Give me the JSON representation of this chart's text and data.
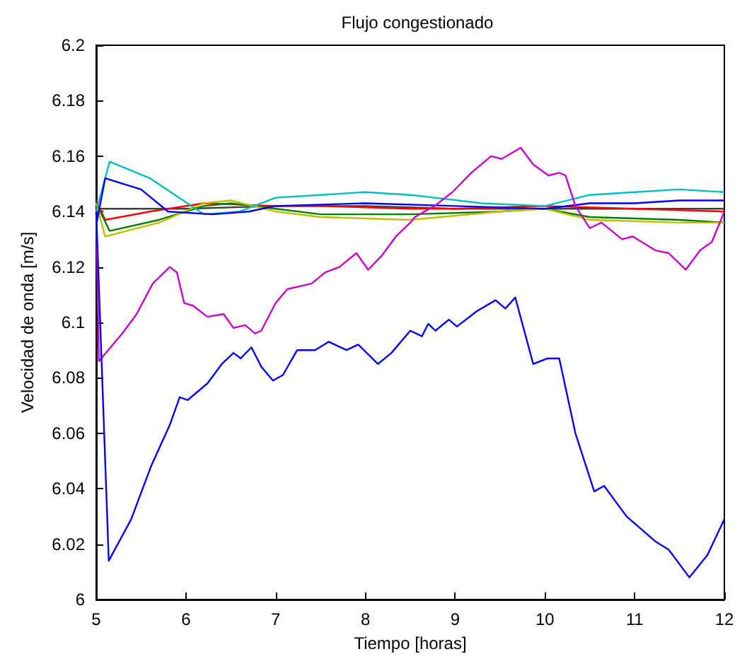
{
  "chart_data": {
    "type": "line",
    "title": "Flujo congestionado",
    "xlabel": "Tiempo [horas]",
    "ylabel": "Velocidad de onda [m/s]",
    "xlim": [
      5,
      12
    ],
    "xticks": [
      5,
      6,
      7,
      8,
      9,
      10,
      11,
      12
    ],
    "ylim": [
      6,
      6.2
    ],
    "yticks": [
      6,
      6.02,
      6.04,
      6.06,
      6.08,
      6.1,
      6.12,
      6.14,
      6.16,
      6.18,
      6.2
    ],
    "grid": false,
    "marker": "none",
    "line_style": "solid",
    "series": [
      {
        "color": "#404040",
        "x": [
          5,
          5.5,
          6,
          7,
          8,
          9,
          10,
          11,
          12
        ],
        "values": [
          6.141,
          6.141,
          6.141,
          6.142,
          6.142,
          6.141,
          6.141,
          6.141,
          6.141
        ]
      },
      {
        "color": "#ff0000",
        "x": [
          5,
          5.1,
          5.6,
          6.2,
          7,
          7.5,
          8.5,
          9,
          10,
          11,
          12
        ],
        "values": [
          6.144,
          6.137,
          6.14,
          6.143,
          6.142,
          6.142,
          6.141,
          6.141,
          6.142,
          6.141,
          6.14
        ]
      },
      {
        "color": "#008000",
        "x": [
          5,
          5.15,
          5.7,
          6.2,
          6.5,
          7,
          7.5,
          8.5,
          9.5,
          10,
          10.5,
          11.5,
          12
        ],
        "values": [
          6.143,
          6.133,
          6.137,
          6.142,
          6.143,
          6.141,
          6.139,
          6.139,
          6.14,
          6.141,
          6.138,
          6.137,
          6.136
        ]
      },
      {
        "color": "#bfbf00",
        "x": [
          5,
          5.1,
          5.7,
          6.2,
          6.5,
          7,
          7.5,
          8.5,
          9.5,
          10,
          10.5,
          11.5,
          12
        ],
        "values": [
          6.143,
          6.131,
          6.136,
          6.143,
          6.144,
          6.14,
          6.138,
          6.137,
          6.14,
          6.141,
          6.137,
          6.136,
          6.136
        ]
      },
      {
        "color": "#00bfbf",
        "x": [
          5,
          5.15,
          5.6,
          6.2,
          6.6,
          7,
          7.5,
          8,
          8.5,
          9.3,
          10,
          10.5,
          11,
          11.5,
          12
        ],
        "values": [
          6.14,
          6.158,
          6.152,
          6.139,
          6.14,
          6.145,
          6.146,
          6.147,
          6.146,
          6.143,
          6.142,
          6.146,
          6.147,
          6.148,
          6.147
        ]
      },
      {
        "color": "#0000ff",
        "x": [
          5,
          5.1,
          5.5,
          5.8,
          6.3,
          6.7,
          7,
          8,
          9,
          10,
          10.5,
          11,
          11.5,
          12
        ],
        "values": [
          6.135,
          6.152,
          6.148,
          6.14,
          6.139,
          6.14,
          6.142,
          6.143,
          6.142,
          6.141,
          6.143,
          6.143,
          6.144,
          6.144
        ]
      },
      {
        "color": "#cc00cc",
        "x": [
          5,
          5.03,
          5.29,
          5.45,
          5.63,
          5.82,
          5.9,
          5.98,
          6.08,
          6.24,
          6.42,
          6.53,
          6.66,
          6.77,
          6.84,
          7.0,
          7.13,
          7.4,
          7.55,
          7.71,
          7.9,
          8.03,
          8.18,
          8.34,
          8.5,
          8.55,
          8.77,
          8.97,
          9.18,
          9.4,
          9.52,
          9.73,
          9.87,
          10.04,
          10.16,
          10.23,
          10.34,
          10.5,
          10.63,
          10.86,
          10.98,
          11.23,
          11.38,
          11.57,
          11.73,
          11.86,
          12
        ],
        "values": [
          6.14,
          6.086,
          6.096,
          6.103,
          6.114,
          6.12,
          6.118,
          6.107,
          6.106,
          6.102,
          6.103,
          6.098,
          6.099,
          6.096,
          6.097,
          6.107,
          6.112,
          6.114,
          6.118,
          6.12,
          6.125,
          6.119,
          6.124,
          6.131,
          6.136,
          6.138,
          6.142,
          6.147,
          6.154,
          6.16,
          6.159,
          6.163,
          6.157,
          6.153,
          6.154,
          6.153,
          6.142,
          6.134,
          6.136,
          6.13,
          6.131,
          6.126,
          6.125,
          6.119,
          6.126,
          6.129,
          6.14
        ]
      },
      {
        "color": "#0000ff",
        "x": [
          5,
          5.14,
          5.39,
          5.61,
          5.82,
          5.93,
          6.02,
          6.24,
          6.4,
          6.53,
          6.61,
          6.73,
          6.84,
          6.97,
          7.08,
          7.24,
          7.44,
          7.59,
          7.79,
          7.92,
          8.14,
          8.29,
          8.5,
          8.63,
          8.7,
          8.78,
          8.93,
          9.02,
          9.24,
          9.45,
          9.56,
          9.67,
          9.87,
          10.03,
          10.16,
          10.34,
          10.55,
          10.66,
          10.91,
          11.23,
          11.38,
          11.61,
          11.81,
          12
        ],
        "values": [
          6.14,
          6.014,
          6.029,
          6.048,
          6.063,
          6.073,
          6.072,
          6.078,
          6.085,
          6.089,
          6.087,
          6.091,
          6.084,
          6.079,
          6.081,
          6.09,
          6.09,
          6.093,
          6.09,
          6.092,
          6.085,
          6.089,
          6.097,
          6.095,
          6.0995,
          6.097,
          6.101,
          6.0985,
          6.104,
          6.108,
          6.105,
          6.109,
          6.085,
          6.087,
          6.087,
          6.06,
          6.039,
          6.041,
          6.03,
          6.021,
          6.018,
          6.008,
          6.016,
          6.029
        ]
      }
    ]
  }
}
